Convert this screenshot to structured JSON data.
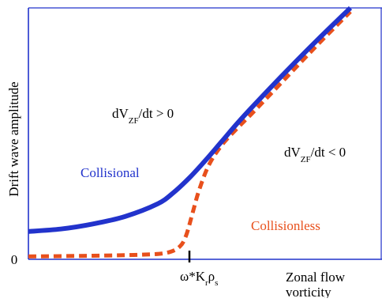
{
  "chart_data": {
    "type": "line",
    "title": "",
    "xlabel_line1": "Zonal flow",
    "xlabel_line2": "vorticity",
    "ylabel": "Drift wave amplitude",
    "xlim": [
      0,
      1
    ],
    "ylim": [
      0,
      1
    ],
    "y_tick_zero": "0",
    "x_tick": {
      "x": 0.5,
      "parts": [
        {
          "text": "ω*K",
          "sub": false
        },
        {
          "text": "r",
          "sub": true
        },
        {
          "text": "ρ",
          "sub": false
        },
        {
          "text": "s",
          "sub": true
        }
      ]
    },
    "series": [
      {
        "name": "Collisional",
        "color": "#2233cc",
        "style": "solid",
        "points": [
          [
            0,
            0.105
          ],
          [
            0.1,
            0.115
          ],
          [
            0.2,
            0.135
          ],
          [
            0.3,
            0.165
          ],
          [
            0.4,
            0.215
          ],
          [
            0.45,
            0.26
          ],
          [
            0.5,
            0.32
          ],
          [
            0.55,
            0.39
          ],
          [
            0.6,
            0.465
          ],
          [
            0.65,
            0.54
          ],
          [
            0.7,
            0.61
          ],
          [
            0.8,
            0.745
          ],
          [
            0.9,
            0.875
          ],
          [
            1.0,
            1.0
          ]
        ]
      },
      {
        "name": "Collisionless",
        "color": "#e8501c",
        "style": "dashed",
        "points": [
          [
            0,
            0.005
          ],
          [
            0.2,
            0.008
          ],
          [
            0.35,
            0.012
          ],
          [
            0.43,
            0.02
          ],
          [
            0.47,
            0.045
          ],
          [
            0.49,
            0.09
          ],
          [
            0.51,
            0.18
          ],
          [
            0.53,
            0.27
          ],
          [
            0.56,
            0.37
          ],
          [
            0.6,
            0.45
          ],
          [
            0.65,
            0.52
          ],
          [
            0.7,
            0.585
          ],
          [
            0.8,
            0.72
          ],
          [
            0.9,
            0.855
          ],
          [
            1.0,
            0.985
          ]
        ]
      }
    ],
    "annotations": [
      {
        "id": "upper",
        "parts": [
          {
            "text": "dV",
            "sub": false
          },
          {
            "text": "ZF",
            "sub": true
          },
          {
            "text": "/dt > 0",
            "sub": false
          }
        ]
      },
      {
        "id": "lower",
        "parts": [
          {
            "text": "dV",
            "sub": false
          },
          {
            "text": "ZF",
            "sub": true
          },
          {
            "text": "/dt < 0",
            "sub": false
          }
        ]
      }
    ],
    "grid": false,
    "legend": "none",
    "colors": {
      "axis": "#2233cc",
      "text": "#000000"
    }
  }
}
